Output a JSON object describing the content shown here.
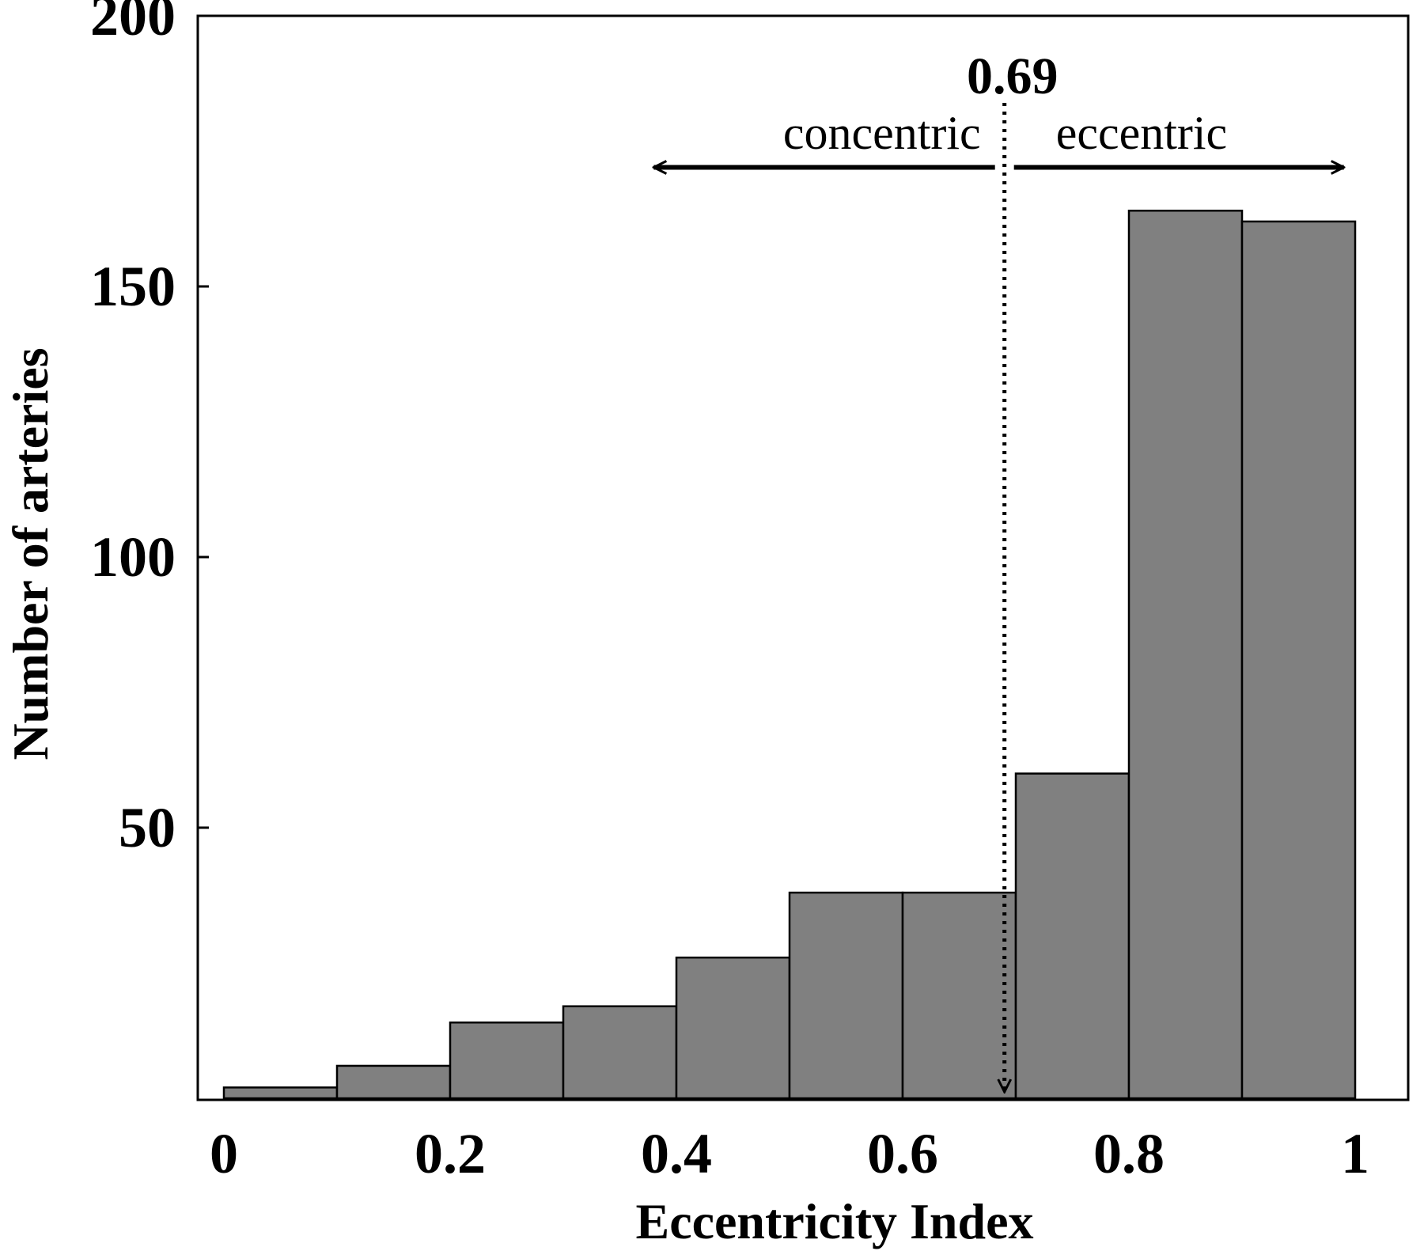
{
  "chart_data": {
    "type": "bar",
    "title": "",
    "xlabel": "Eccentricity Index",
    "ylabel": "Number of arteries",
    "xlim": [
      0,
      1
    ],
    "ylim": [
      0,
      200
    ],
    "xticks": [
      {
        "value": 0,
        "label": "0"
      },
      {
        "value": 0.2,
        "label": "0.2"
      },
      {
        "value": 0.4,
        "label": "0.4"
      },
      {
        "value": 0.6,
        "label": "0.6"
      },
      {
        "value": 0.8,
        "label": "0.8"
      },
      {
        "value": 1,
        "label": "1"
      }
    ],
    "yticks": [
      {
        "value": 50,
        "label": "50"
      },
      {
        "value": 100,
        "label": "100"
      },
      {
        "value": 150,
        "label": "150"
      },
      {
        "value": 200,
        "label": "200"
      }
    ],
    "bins": [
      {
        "x0": 0.0,
        "x1": 0.1,
        "count": 2
      },
      {
        "x0": 0.1,
        "x1": 0.2,
        "count": 6
      },
      {
        "x0": 0.2,
        "x1": 0.3,
        "count": 14
      },
      {
        "x0": 0.3,
        "x1": 0.4,
        "count": 17
      },
      {
        "x0": 0.4,
        "x1": 0.5,
        "count": 26
      },
      {
        "x0": 0.5,
        "x1": 0.6,
        "count": 38
      },
      {
        "x0": 0.6,
        "x1": 0.7,
        "count": 38
      },
      {
        "x0": 0.7,
        "x1": 0.8,
        "count": 60
      },
      {
        "x0": 0.8,
        "x1": 0.9,
        "count": 164
      },
      {
        "x0": 0.9,
        "x1": 1.0,
        "count": 162
      }
    ],
    "bar_color": "#808080",
    "grid": false,
    "threshold": {
      "value": 0.69,
      "label": "0.69",
      "left_label": "concentric",
      "right_label": "eccentric",
      "arrow_left_to": 0.38,
      "arrow_right_to": 0.99,
      "arrow_level": 172
    }
  }
}
